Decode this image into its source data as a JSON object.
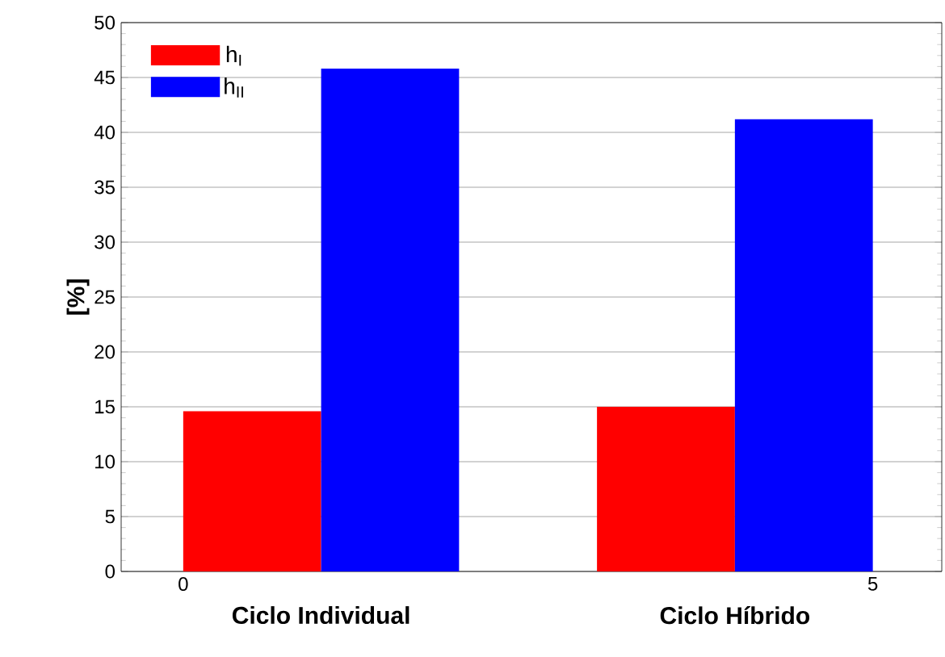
{
  "chart_data": {
    "type": "bar",
    "ylabel": "[%]",
    "xlim": [
      -0.45,
      5.5
    ],
    "xticks": [
      0,
      5
    ],
    "ylim": [
      0,
      50
    ],
    "yticks": [
      0,
      5,
      10,
      15,
      20,
      25,
      30,
      35,
      40,
      45,
      50
    ],
    "grid": "y",
    "legend": "top left",
    "annotations": [
      "Ciclo Individual",
      "Ciclo Híbrido"
    ],
    "series": [
      {
        "name": "h$_{I}$",
        "color": "#ff0000",
        "x": [
          0.5,
          3.5
        ],
        "values": [
          14.6,
          15.0
        ]
      },
      {
        "name": "h$_{II}$",
        "color": "#0000ff",
        "x": [
          1.5,
          4.5
        ],
        "values": [
          45.8,
          41.2
        ]
      }
    ]
  }
}
